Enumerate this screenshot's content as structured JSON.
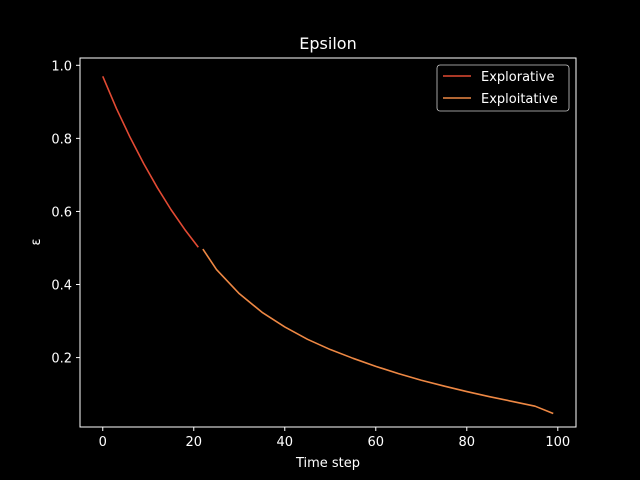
{
  "chart_data": {
    "type": "line",
    "title": "Epsilon",
    "xlabel": "Time step",
    "ylabel": "ε",
    "xlim": [
      -5,
      104
    ],
    "ylim": [
      0.01,
      1.02
    ],
    "xticks": [
      0,
      20,
      40,
      60,
      80,
      100
    ],
    "yticks": [
      0.2,
      0.4,
      0.6,
      0.8,
      1.0
    ],
    "xtick_labels": [
      "0",
      "20",
      "40",
      "60",
      "80",
      "100"
    ],
    "ytick_labels": [
      "0.2",
      "0.4",
      "0.6",
      "0.8",
      "1.0"
    ],
    "grid": false,
    "legend_position": "top-right",
    "series": [
      {
        "name": "Explorative",
        "color": "#e24a33",
        "x": [
          0,
          3,
          6,
          9,
          12,
          15,
          18,
          21
        ],
        "y": [
          0.97,
          0.882,
          0.803,
          0.731,
          0.665,
          0.605,
          0.551,
          0.502
        ]
      },
      {
        "name": "Exploitative",
        "color": "#ee8844",
        "x": [
          22,
          25,
          30,
          35,
          40,
          45,
          50,
          55,
          60,
          65,
          70,
          75,
          80,
          85,
          90,
          95,
          99
        ],
        "y": [
          0.497,
          0.441,
          0.375,
          0.324,
          0.284,
          0.25,
          0.222,
          0.198,
          0.176,
          0.156,
          0.138,
          0.122,
          0.107,
          0.093,
          0.08,
          0.067,
          0.047
        ]
      }
    ]
  }
}
